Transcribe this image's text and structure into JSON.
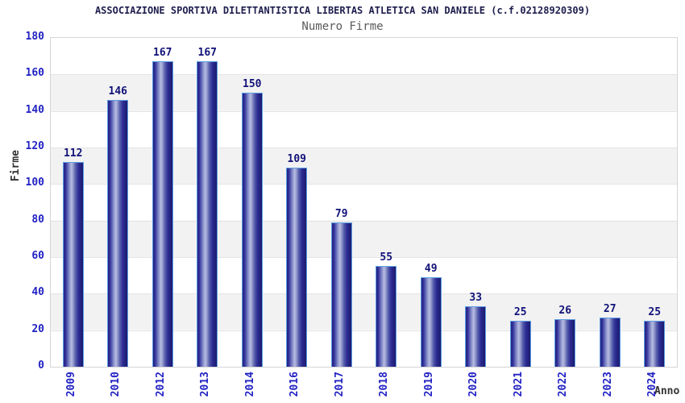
{
  "title": "ASSOCIAZIONE SPORTIVA DILETTANTISTICA LIBERTAS ATLETICA SAN DANIELE (c.f.02128920309)",
  "subtitle": "Numero Firme",
  "chart_data": {
    "type": "bar",
    "title": "ASSOCIAZIONE SPORTIVA DILETTANTISTICA LIBERTAS ATLETICA SAN DANIELE (c.f.02128920309)",
    "subtitle": "Numero Firme",
    "categories": [
      "2009",
      "2010",
      "2012",
      "2013",
      "2014",
      "2016",
      "2017",
      "2018",
      "2019",
      "2020",
      "2021",
      "2022",
      "2023",
      "2024"
    ],
    "values": [
      112,
      146,
      167,
      167,
      150,
      109,
      79,
      55,
      49,
      33,
      25,
      26,
      27,
      25
    ],
    "xlabel": "Anno",
    "ylabel": "Firme",
    "ylim": [
      0,
      180
    ],
    "ytick_step": 20,
    "yticks": [
      0,
      20,
      40,
      60,
      80,
      100,
      120,
      140,
      160,
      180
    ],
    "grid": "alternating-horizontal-bands",
    "legend_position": "none",
    "data_labels": true
  },
  "colors": {
    "bar_gradient_edge": "#23237e",
    "bar_gradient_highlight": "#b6bce0",
    "bar_border": "#5c9de2",
    "value_label": "#12127a",
    "tick_label": "#2222c4",
    "title": "#1e1e4e",
    "subtitle": "#5a5a5a",
    "axis_title": "#333333",
    "band_gray": "#f2f2f2",
    "band_white": "#ffffff",
    "plot_border": "#d5d5d5",
    "gridline": "#e4e4e4"
  }
}
